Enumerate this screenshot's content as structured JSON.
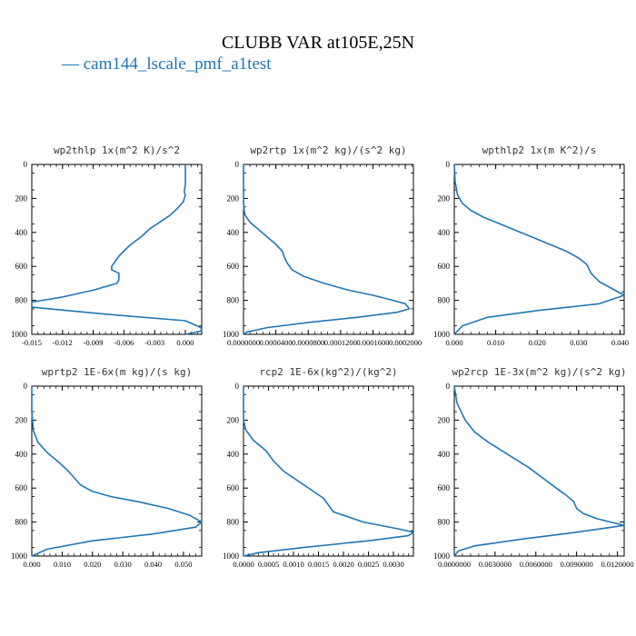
{
  "figure": {
    "title": "CLUBB VAR at105E,25N",
    "legend_label": "cam144_lscale_pmf_a1test",
    "line_color": "#1f77b4"
  },
  "chart_data": [
    {
      "type": "line",
      "title": "wp2thlp   1x(m^2 K)/s^2",
      "xlim": [
        -0.015,
        0.0016
      ],
      "xticks": [
        "-0.015",
        "-0.012",
        "-0.009",
        "-0.006",
        "-0.003",
        "0.000"
      ],
      "xtick_values": [
        -0.015,
        -0.012,
        -0.009,
        -0.006,
        -0.003,
        0.0
      ],
      "ylim": [
        1000,
        0
      ],
      "yticks": [
        "0",
        "200",
        "400",
        "600",
        "800",
        "1000"
      ],
      "ytick_values": [
        0,
        200,
        400,
        600,
        800,
        1000
      ],
      "x": [
        0.0,
        0.0,
        0.0,
        0.0,
        -0.0001,
        0.0,
        -0.0002,
        -0.0008,
        -0.0015,
        -0.0025,
        -0.0035,
        -0.0042,
        -0.0055,
        -0.0065,
        -0.0072,
        -0.0072,
        -0.0065,
        -0.0065,
        -0.0067,
        -0.009,
        -0.012,
        -0.015,
        -0.015,
        -0.008,
        0.0,
        0.0015,
        0.0016,
        0.0
      ],
      "y": [
        0,
        40,
        80,
        120,
        160,
        180,
        220,
        260,
        300,
        340,
        380,
        420,
        480,
        540,
        600,
        620,
        640,
        680,
        700,
        740,
        780,
        810,
        840,
        880,
        920,
        960,
        980,
        1000
      ]
    },
    {
      "type": "line",
      "title": "wp2rtp   1x(m^2 kg)/(s^2 kg)",
      "xlim": [
        0.0,
        0.00021
      ],
      "xticks": [
        "0.0000000",
        "0.0000400",
        "0.0000800",
        "0.0001200",
        "0.0001600",
        "0.0002000"
      ],
      "xtick_values": [
        0.0,
        4e-05,
        8e-05,
        0.00012,
        0.00016,
        0.0002
      ],
      "ylim": [
        1000,
        0
      ],
      "yticks": [
        "0",
        "200",
        "400",
        "600",
        "800",
        "1000"
      ],
      "ytick_values": [
        0,
        200,
        400,
        600,
        800,
        1000
      ],
      "x": [
        0.0,
        0.0,
        0.0,
        5e-07,
        2e-06,
        8e-06,
        1.8e-05,
        3e-05,
        4e-05,
        4.8e-05,
        5e-05,
        5.4e-05,
        6e-05,
        7.5e-05,
        0.0001,
        0.00013,
        0.00016,
        0.000185,
        0.0002,
        0.000205,
        0.00019,
        0.00014,
        8e-05,
        3e-05,
        5e-06,
        0.0
      ],
      "y": [
        0,
        100,
        200,
        260,
        300,
        340,
        380,
        430,
        470,
        510,
        540,
        580,
        620,
        660,
        700,
        740,
        770,
        800,
        820,
        850,
        870,
        900,
        930,
        960,
        985,
        1000
      ]
    },
    {
      "type": "line",
      "title": "wpthlp2   1x(m K^2)/s",
      "xlim": [
        0.0,
        0.041
      ],
      "xticks": [
        "0.000",
        "0.010",
        "0.020",
        "0.030",
        "0.040"
      ],
      "xtick_values": [
        0.0,
        0.01,
        0.02,
        0.03,
        0.04
      ],
      "ylim": [
        1000,
        0
      ],
      "yticks": [
        "0",
        "200",
        "400",
        "600",
        "800",
        "1000"
      ],
      "ytick_values": [
        0,
        200,
        400,
        600,
        800,
        1000
      ],
      "x": [
        0.0,
        0.0002,
        0.0008,
        0.002,
        0.004,
        0.007,
        0.011,
        0.015,
        0.019,
        0.023,
        0.027,
        0.03,
        0.032,
        0.033,
        0.035,
        0.038,
        0.041,
        0.035,
        0.02,
        0.008,
        0.002,
        0.0
      ],
      "y": [
        0,
        100,
        180,
        230,
        270,
        310,
        350,
        390,
        430,
        470,
        510,
        550,
        590,
        640,
        690,
        730,
        770,
        820,
        860,
        900,
        950,
        1000
      ]
    },
    {
      "type": "line",
      "title": "wprtp2   1E-6x(m kg)/(s kg)",
      "xlim": [
        0.0,
        0.056
      ],
      "xticks": [
        "0.000",
        "0.010",
        "0.020",
        "0.030",
        "0.040",
        "0.050"
      ],
      "xtick_values": [
        0.0,
        0.01,
        0.02,
        0.03,
        0.04,
        0.05
      ],
      "ylim": [
        1000,
        0
      ],
      "yticks": [
        "0",
        "200",
        "400",
        "600",
        "800",
        "1000"
      ],
      "ytick_values": [
        0,
        200,
        400,
        600,
        800,
        1000
      ],
      "x": [
        0.0,
        0.0,
        0.0005,
        0.002,
        0.005,
        0.009,
        0.012,
        0.014,
        0.016,
        0.02,
        0.026,
        0.035,
        0.045,
        0.052,
        0.056,
        0.054,
        0.04,
        0.02,
        0.005,
        0.0
      ],
      "y": [
        0,
        150,
        260,
        330,
        390,
        450,
        500,
        540,
        580,
        620,
        650,
        680,
        720,
        760,
        800,
        830,
        870,
        910,
        960,
        1000
      ]
    },
    {
      "type": "line",
      "title": "rcp2   1E-6x(kg^2)/(kg^2)",
      "xlim": [
        0.0,
        0.0034
      ],
      "xticks": [
        "0.0000",
        "0.0005",
        "0.0010",
        "0.0015",
        "0.0020",
        "0.0025",
        "0.0030"
      ],
      "xtick_values": [
        0.0,
        0.0005,
        0.001,
        0.0015,
        0.002,
        0.0025,
        0.003
      ],
      "ylim": [
        1000,
        0
      ],
      "yticks": [
        "0",
        "200",
        "400",
        "600",
        "800",
        "1000"
      ],
      "ytick_values": [
        0,
        200,
        400,
        600,
        800,
        1000
      ],
      "x": [
        0.0,
        0.0,
        5e-05,
        0.0002,
        0.00045,
        0.0006,
        0.0008,
        0.0011,
        0.0014,
        0.0016,
        0.0018,
        0.0024,
        0.0031,
        0.0034,
        0.0033,
        0.0025,
        0.0012,
        0.0003,
        0.0
      ],
      "y": [
        0,
        200,
        260,
        320,
        380,
        440,
        500,
        560,
        620,
        660,
        740,
        800,
        840,
        860,
        880,
        910,
        950,
        980,
        1000
      ]
    },
    {
      "type": "line",
      "title": "wp2rcp   1E-3x(m^2 kg)/(s^2 kg)",
      "xlim": [
        0.0,
        0.0125
      ],
      "xticks": [
        "0.0000000",
        "0.0030000",
        "0.0060000",
        "0.0090000",
        "0.0120000"
      ],
      "xtick_values": [
        0.0,
        0.003,
        0.006,
        0.009,
        0.012
      ],
      "ylim": [
        1000,
        0
      ],
      "yticks": [
        "0",
        "200",
        "400",
        "600",
        "800",
        "1000"
      ],
      "ytick_values": [
        0,
        200,
        400,
        600,
        800,
        1000
      ],
      "x": [
        0.0,
        0.0002,
        0.0008,
        0.0015,
        0.0025,
        0.0035,
        0.0045,
        0.0055,
        0.0065,
        0.0075,
        0.0082,
        0.0088,
        0.009,
        0.0095,
        0.0105,
        0.0115,
        0.0125,
        0.009,
        0.005,
        0.0015,
        0.0003,
        0.0
      ],
      "y": [
        0,
        100,
        200,
        270,
        330,
        380,
        430,
        480,
        540,
        600,
        640,
        680,
        720,
        750,
        780,
        800,
        820,
        860,
        900,
        940,
        970,
        1000
      ]
    }
  ]
}
